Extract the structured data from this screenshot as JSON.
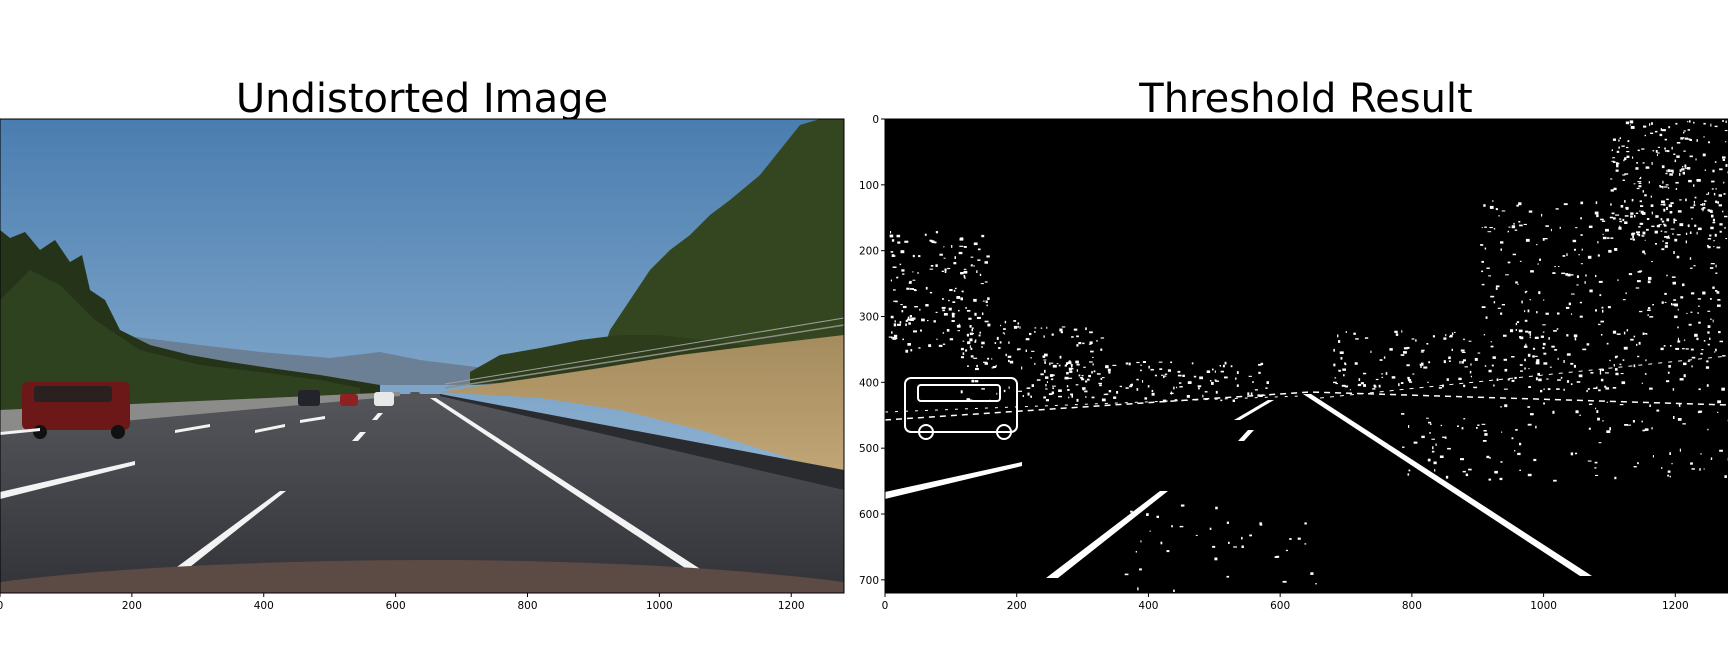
{
  "left_panel": {
    "title": "Undistorted Image",
    "x_ticks": [
      "0",
      "200",
      "400",
      "600",
      "800",
      "1000",
      "1200"
    ]
  },
  "right_panel": {
    "title": "Threshold Result",
    "x_ticks": [
      "0",
      "200",
      "400",
      "600",
      "800",
      "1000",
      "1200"
    ],
    "y_ticks": [
      "0",
      "100",
      "200",
      "300",
      "400",
      "500",
      "600",
      "700"
    ]
  },
  "colors": {
    "sky_top": "#4c7fb1",
    "sky_horizon": "#b9cfe0",
    "road": "#3e3f45",
    "grass": "#b59b6c",
    "trees": "#2f3f1c",
    "lane": "#f4f4f4",
    "threshold_bg": "#000000",
    "threshold_fg": "#ffffff"
  }
}
